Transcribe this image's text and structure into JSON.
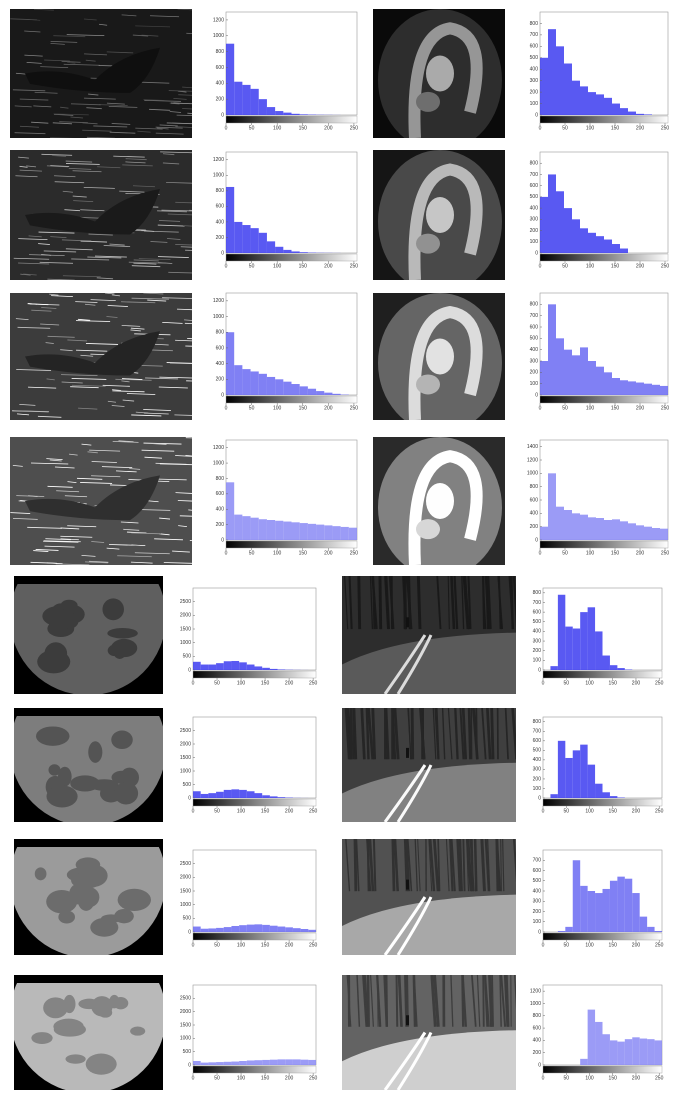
{
  "chart_data": [
    {
      "type": "histogram",
      "color": "#3c3cf0",
      "bins": [
        0,
        16,
        32,
        48,
        64,
        80,
        96,
        112,
        128,
        144,
        160,
        176,
        192,
        208,
        224,
        240,
        256
      ],
      "values": [
        900,
        420,
        380,
        330,
        200,
        100,
        50,
        30,
        15,
        8,
        5,
        3,
        2,
        1,
        0,
        0
      ],
      "xlim": [
        0,
        256
      ],
      "xticks": [
        0,
        50,
        100,
        150,
        200,
        250
      ],
      "ylim": [
        0,
        1300
      ],
      "yticks": [
        0,
        200,
        400,
        600,
        800,
        1000,
        1200
      ]
    },
    {
      "type": "histogram",
      "color": "#3c3cf0",
      "bins": [
        0,
        16,
        32,
        48,
        64,
        80,
        96,
        112,
        128,
        144,
        160,
        176,
        192,
        208,
        224,
        240,
        256
      ],
      "values": [
        500,
        750,
        600,
        450,
        300,
        250,
        200,
        180,
        150,
        100,
        60,
        30,
        10,
        5,
        0,
        0
      ],
      "xlim": [
        0,
        256
      ],
      "xticks": [
        0,
        50,
        100,
        150,
        200,
        250
      ],
      "ylim": [
        0,
        900
      ],
      "yticks": [
        0,
        100,
        200,
        300,
        400,
        500,
        600,
        700,
        800
      ]
    },
    {
      "type": "histogram",
      "color": "#3c3cf0",
      "bins": [
        0,
        16,
        32,
        48,
        64,
        80,
        96,
        112,
        128,
        144,
        160,
        176,
        192,
        208,
        224,
        240,
        256
      ],
      "values": [
        850,
        400,
        360,
        320,
        260,
        150,
        80,
        40,
        20,
        10,
        5,
        3,
        2,
        1,
        0,
        0
      ],
      "xlim": [
        0,
        256
      ],
      "xticks": [
        0,
        50,
        100,
        150,
        200,
        250
      ],
      "ylim": [
        0,
        1300
      ],
      "yticks": [
        0,
        200,
        400,
        600,
        800,
        1000,
        1200
      ]
    },
    {
      "type": "histogram",
      "color": "#3c3cf0",
      "bins": [
        0,
        16,
        32,
        48,
        64,
        80,
        96,
        112,
        128,
        144,
        160,
        176,
        192,
        208,
        224,
        240,
        256
      ],
      "values": [
        500,
        700,
        550,
        400,
        300,
        220,
        180,
        150,
        120,
        80,
        40,
        0,
        0,
        0,
        0,
        0
      ],
      "xlim": [
        0,
        256
      ],
      "xticks": [
        0,
        50,
        100,
        150,
        200,
        250
      ],
      "ylim": [
        0,
        900
      ],
      "yticks": [
        0,
        100,
        200,
        300,
        400,
        500,
        600,
        700,
        800
      ]
    },
    {
      "type": "histogram",
      "color": "#6a6af2",
      "bins": [
        0,
        16,
        32,
        48,
        64,
        80,
        96,
        112,
        128,
        144,
        160,
        176,
        192,
        208,
        224,
        240,
        256
      ],
      "values": [
        800,
        380,
        330,
        300,
        270,
        230,
        200,
        170,
        140,
        110,
        80,
        50,
        30,
        15,
        5,
        0
      ],
      "xlim": [
        0,
        256
      ],
      "xticks": [
        0,
        50,
        100,
        150,
        200,
        250
      ],
      "ylim": [
        0,
        1300
      ],
      "yticks": [
        0,
        200,
        400,
        600,
        800,
        1000,
        1200
      ]
    },
    {
      "type": "histogram",
      "color": "#6a6af2",
      "bins": [
        0,
        16,
        32,
        48,
        64,
        80,
        96,
        112,
        128,
        144,
        160,
        176,
        192,
        208,
        224,
        240,
        256
      ],
      "values": [
        300,
        800,
        500,
        400,
        350,
        420,
        300,
        250,
        200,
        150,
        130,
        120,
        110,
        100,
        90,
        80
      ],
      "xlim": [
        0,
        256
      ],
      "xticks": [
        0,
        50,
        100,
        150,
        200,
        250
      ],
      "ylim": [
        0,
        900
      ],
      "yticks": [
        0,
        100,
        200,
        300,
        400,
        500,
        600,
        700,
        800
      ]
    },
    {
      "type": "histogram",
      "color": "#8a8af5",
      "bins": [
        0,
        16,
        32,
        48,
        64,
        80,
        96,
        112,
        128,
        144,
        160,
        176,
        192,
        208,
        224,
        240,
        256
      ],
      "values": [
        750,
        330,
        310,
        290,
        270,
        260,
        250,
        240,
        230,
        220,
        210,
        200,
        190,
        180,
        170,
        160
      ],
      "xlim": [
        0,
        256
      ],
      "xticks": [
        0,
        50,
        100,
        150,
        200,
        250
      ],
      "ylim": [
        0,
        1300
      ],
      "yticks": [
        0,
        200,
        400,
        600,
        800,
        1000,
        1200
      ]
    },
    {
      "type": "histogram",
      "color": "#8a8af5",
      "bins": [
        0,
        16,
        32,
        48,
        64,
        80,
        96,
        112,
        128,
        144,
        160,
        176,
        192,
        208,
        224,
        240,
        256
      ],
      "values": [
        200,
        1000,
        500,
        450,
        400,
        380,
        340,
        330,
        300,
        310,
        280,
        250,
        220,
        200,
        180,
        170
      ],
      "xlim": [
        0,
        256
      ],
      "xticks": [
        0,
        50,
        100,
        150,
        200,
        250
      ],
      "ylim": [
        0,
        1500
      ],
      "yticks": [
        0,
        200,
        400,
        600,
        800,
        1000,
        1200,
        1400
      ]
    },
    {
      "type": "histogram",
      "color": "#3c3cf0",
      "bins": [
        0,
        16,
        32,
        48,
        64,
        80,
        96,
        112,
        128,
        144,
        160,
        176,
        192,
        208,
        224,
        240,
        256
      ],
      "values": [
        300,
        200,
        200,
        250,
        320,
        330,
        280,
        200,
        130,
        80,
        40,
        20,
        10,
        5,
        2,
        0
      ],
      "xlim": [
        0,
        256
      ],
      "xticks": [
        0,
        50,
        100,
        150,
        200,
        250
      ],
      "ylim": [
        0,
        3000
      ],
      "yticks": [
        0,
        500,
        1000,
        1500,
        2000,
        2500
      ]
    },
    {
      "type": "histogram",
      "color": "#3c3cf0",
      "bins": [
        0,
        16,
        32,
        48,
        64,
        80,
        96,
        112,
        128,
        144,
        160,
        176,
        192,
        208,
        224,
        240,
        256
      ],
      "values": [
        0,
        40,
        780,
        450,
        430,
        600,
        650,
        400,
        150,
        50,
        20,
        5,
        0,
        0,
        0,
        0
      ],
      "xlim": [
        0,
        256
      ],
      "xticks": [
        0,
        50,
        100,
        150,
        200,
        250
      ],
      "ylim": [
        0,
        850
      ],
      "yticks": [
        0,
        100,
        200,
        300,
        400,
        500,
        600,
        700,
        800
      ]
    },
    {
      "type": "histogram",
      "color": "#3c3cf0",
      "bins": [
        0,
        16,
        32,
        48,
        64,
        80,
        96,
        112,
        128,
        144,
        160,
        176,
        192,
        208,
        224,
        240,
        256
      ],
      "values": [
        250,
        150,
        180,
        230,
        300,
        320,
        300,
        250,
        180,
        100,
        60,
        30,
        15,
        5,
        2,
        0
      ],
      "xlim": [
        0,
        256
      ],
      "xticks": [
        0,
        50,
        100,
        150,
        200,
        250
      ],
      "ylim": [
        0,
        3000
      ],
      "yticks": [
        0,
        500,
        1000,
        1500,
        2000,
        2500
      ]
    },
    {
      "type": "histogram",
      "color": "#3c3cf0",
      "bins": [
        0,
        16,
        32,
        48,
        64,
        80,
        96,
        112,
        128,
        144,
        160,
        176,
        192,
        208,
        224,
        240,
        256
      ],
      "values": [
        0,
        40,
        600,
        420,
        500,
        560,
        350,
        150,
        60,
        20,
        5,
        0,
        0,
        0,
        0,
        0
      ],
      "xlim": [
        0,
        256
      ],
      "xticks": [
        0,
        50,
        100,
        150,
        200,
        250
      ],
      "ylim": [
        0,
        850
      ],
      "yticks": [
        0,
        100,
        200,
        300,
        400,
        500,
        600,
        700,
        800
      ]
    },
    {
      "type": "histogram",
      "color": "#6a6af2",
      "bins": [
        0,
        16,
        32,
        48,
        64,
        80,
        96,
        112,
        128,
        144,
        160,
        176,
        192,
        208,
        224,
        240,
        256
      ],
      "values": [
        200,
        120,
        130,
        150,
        180,
        220,
        250,
        270,
        280,
        260,
        230,
        200,
        170,
        140,
        110,
        80
      ],
      "xlim": [
        0,
        256
      ],
      "xticks": [
        0,
        50,
        100,
        150,
        200,
        250
      ],
      "ylim": [
        0,
        3000
      ],
      "yticks": [
        0,
        500,
        1000,
        1500,
        2000,
        2500
      ]
    },
    {
      "type": "histogram",
      "color": "#6a6af2",
      "bins": [
        0,
        16,
        32,
        48,
        64,
        80,
        96,
        112,
        128,
        144,
        160,
        176,
        192,
        208,
        224,
        240,
        256
      ],
      "values": [
        0,
        0,
        10,
        50,
        700,
        450,
        400,
        380,
        420,
        500,
        540,
        520,
        380,
        150,
        50,
        10
      ],
      "xlim": [
        0,
        256
      ],
      "xticks": [
        0,
        50,
        100,
        150,
        200,
        250
      ],
      "ylim": [
        0,
        800
      ],
      "yticks": [
        0,
        100,
        200,
        300,
        400,
        500,
        600,
        700
      ]
    },
    {
      "type": "histogram",
      "color": "#8a8af5",
      "bins": [
        0,
        16,
        32,
        48,
        64,
        80,
        96,
        112,
        128,
        144,
        160,
        176,
        192,
        208,
        224,
        240,
        256
      ],
      "values": [
        150,
        90,
        100,
        110,
        120,
        130,
        150,
        170,
        180,
        190,
        200,
        210,
        210,
        210,
        200,
        190
      ],
      "xlim": [
        0,
        256
      ],
      "xticks": [
        0,
        50,
        100,
        150,
        200,
        250
      ],
      "ylim": [
        0,
        3000
      ],
      "yticks": [
        0,
        500,
        1000,
        1500,
        2000,
        2500
      ]
    },
    {
      "type": "histogram",
      "color": "#8a8af5",
      "bins": [
        0,
        16,
        32,
        48,
        64,
        80,
        96,
        112,
        128,
        144,
        160,
        176,
        192,
        208,
        224,
        240,
        256
      ],
      "values": [
        0,
        0,
        0,
        0,
        0,
        100,
        900,
        700,
        500,
        400,
        380,
        420,
        450,
        430,
        420,
        400
      ],
      "xlim": [
        0,
        256
      ],
      "xticks": [
        0,
        50,
        100,
        150,
        200,
        250
      ],
      "ylim": [
        0,
        1300
      ],
      "yticks": [
        0,
        200,
        400,
        600,
        800,
        1000,
        1200
      ]
    }
  ]
}
